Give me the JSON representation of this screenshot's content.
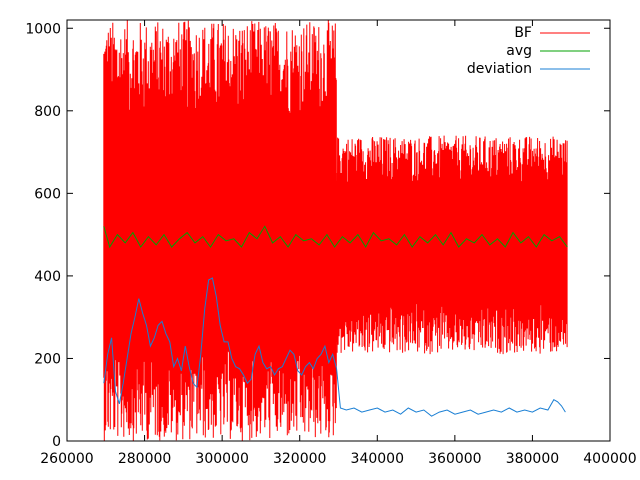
{
  "chart_data": {
    "type": "line",
    "title": "",
    "xlabel": "",
    "ylabel": "",
    "xlim": [
      260000,
      400000
    ],
    "ylim": [
      0,
      1020
    ],
    "xticks": [
      260000,
      280000,
      300000,
      320000,
      340000,
      360000,
      380000,
      400000
    ],
    "yticks": [
      0,
      200,
      400,
      600,
      800,
      1000
    ],
    "x_tick_labels": [
      "260000",
      "280000",
      "300000",
      "320000",
      "340000",
      "360000",
      "380000",
      "400000"
    ],
    "y_tick_labels": [
      "0",
      "200",
      "400",
      "600",
      "800",
      "1000"
    ],
    "grid": false,
    "legend_position": "top-right",
    "series": [
      {
        "name": "BF",
        "color": "#ff0000",
        "style": "dense-noisy-line",
        "segments": [
          {
            "x_start": 269500,
            "x_end": 329500,
            "min": 0,
            "max": 1020,
            "center": 490
          },
          {
            "x_start": 329500,
            "x_end": 389000,
            "min": 210,
            "max": 740,
            "center": 485
          }
        ]
      },
      {
        "name": "avg",
        "color": "#00a000",
        "x": [
          269500,
          271000,
          273000,
          275000,
          277000,
          279000,
          281000,
          283000,
          285000,
          287000,
          289000,
          291000,
          293000,
          295000,
          297000,
          299000,
          301000,
          303000,
          305000,
          307000,
          309000,
          311000,
          313000,
          315000,
          317000,
          319000,
          321000,
          323000,
          325000,
          327000,
          329000,
          331000,
          333000,
          335000,
          337000,
          339000,
          341000,
          343000,
          345000,
          347000,
          349000,
          351000,
          353000,
          355000,
          357000,
          359000,
          361000,
          363000,
          365000,
          367000,
          369000,
          371000,
          373000,
          375000,
          377000,
          379000,
          381000,
          383000,
          385000,
          387000,
          389000
        ],
        "y": [
          520,
          470,
          500,
          480,
          505,
          470,
          495,
          475,
          500,
          470,
          490,
          505,
          480,
          495,
          470,
          500,
          485,
          490,
          470,
          505,
          490,
          520,
          480,
          495,
          470,
          500,
          485,
          490,
          475,
          500,
          470,
          495,
          480,
          500,
          470,
          505,
          485,
          490,
          475,
          500,
          470,
          495,
          480,
          500,
          475,
          505,
          470,
          490,
          480,
          500,
          475,
          490,
          470,
          505,
          480,
          495,
          470,
          500,
          485,
          495,
          470
        ]
      },
      {
        "name": "deviation",
        "color": "#1a7fd4",
        "x": [
          269500,
          270500,
          271500,
          272500,
          273500,
          274500,
          275500,
          276500,
          277500,
          278500,
          279500,
          280500,
          281500,
          282500,
          283500,
          284500,
          285500,
          286500,
          287500,
          288500,
          289500,
          290500,
          291500,
          292500,
          293500,
          294500,
          295500,
          296500,
          297500,
          298500,
          299500,
          300500,
          301500,
          302500,
          303500,
          304500,
          305500,
          306500,
          307500,
          308500,
          309500,
          310500,
          311500,
          312500,
          313500,
          314500,
          315500,
          316500,
          317500,
          318500,
          319500,
          320500,
          321500,
          322500,
          323500,
          324500,
          325500,
          326500,
          327500,
          328500,
          329500,
          330500,
          332000,
          334000,
          336000,
          338000,
          340000,
          342000,
          344000,
          346000,
          348000,
          350000,
          352000,
          354000,
          356000,
          358000,
          360000,
          362000,
          364000,
          366000,
          368000,
          370000,
          372000,
          374000,
          376000,
          378000,
          380000,
          382000,
          384000,
          385500,
          386500,
          387500,
          388500
        ],
        "y": [
          140,
          210,
          250,
          120,
          90,
          140,
          200,
          260,
          300,
          345,
          310,
          280,
          230,
          250,
          280,
          290,
          260,
          240,
          180,
          200,
          170,
          230,
          180,
          140,
          130,
          210,
          320,
          390,
          395,
          350,
          280,
          240,
          240,
          200,
          180,
          175,
          160,
          140,
          150,
          210,
          230,
          190,
          175,
          180,
          160,
          175,
          180,
          200,
          220,
          210,
          170,
          160,
          180,
          190,
          175,
          200,
          210,
          230,
          190,
          210,
          175,
          80,
          75,
          80,
          70,
          75,
          80,
          70,
          75,
          65,
          80,
          70,
          75,
          60,
          70,
          75,
          65,
          70,
          75,
          65,
          70,
          75,
          70,
          80,
          70,
          75,
          70,
          80,
          75,
          100,
          95,
          85,
          70
        ]
      }
    ]
  }
}
